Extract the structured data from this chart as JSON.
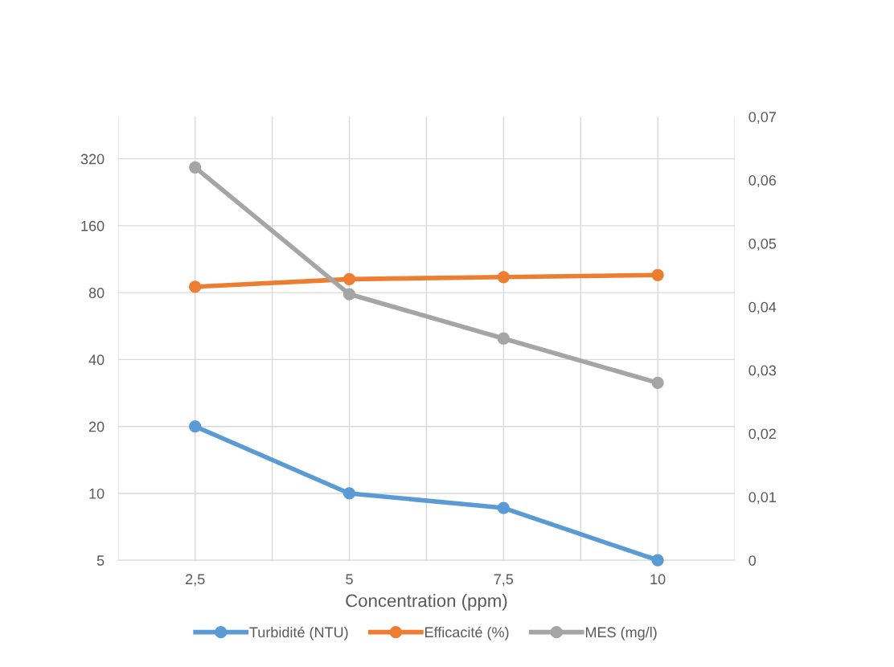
{
  "chart_data": {
    "type": "line",
    "xlabel": "Concentration (ppm)",
    "categories": [
      "2,5",
      "5",
      "7,5",
      "10"
    ],
    "series": [
      {
        "name": "Turbidité (NTU)",
        "color": "#5b9bd5",
        "values": [
          20,
          10,
          8.6,
          5
        ]
      },
      {
        "name": "Efficacité (%)",
        "color": "#ed7d31",
        "values": [
          85,
          92,
          94,
          96
        ]
      },
      {
        "name": "MES (mg/l)",
        "color": "#a5a5a5",
        "values": [
          0.062,
          0.042,
          0.035,
          0.028
        ],
        "axis": "y2"
      }
    ],
    "log": "y",
    "ylim": [
      5,
      495
    ],
    "yticks": [
      5,
      10,
      20,
      40,
      80,
      160,
      320
    ],
    "y2lim": [
      0,
      0.07
    ],
    "y2ticks": [
      {
        "value": 0,
        "label": "0"
      },
      {
        "value": 0.01,
        "label": "0,01"
      },
      {
        "value": 0.02,
        "label": "0,02"
      },
      {
        "value": 0.03,
        "label": "0,03"
      },
      {
        "value": 0.04,
        "label": "0,04"
      },
      {
        "value": 0.05,
        "label": "0,05"
      },
      {
        "value": 0.06,
        "label": "0,06"
      },
      {
        "value": 0.07,
        "label": "0,07"
      }
    ],
    "grid": true,
    "legend": "bottom",
    "marker": "circle",
    "line_style": "solid"
  }
}
